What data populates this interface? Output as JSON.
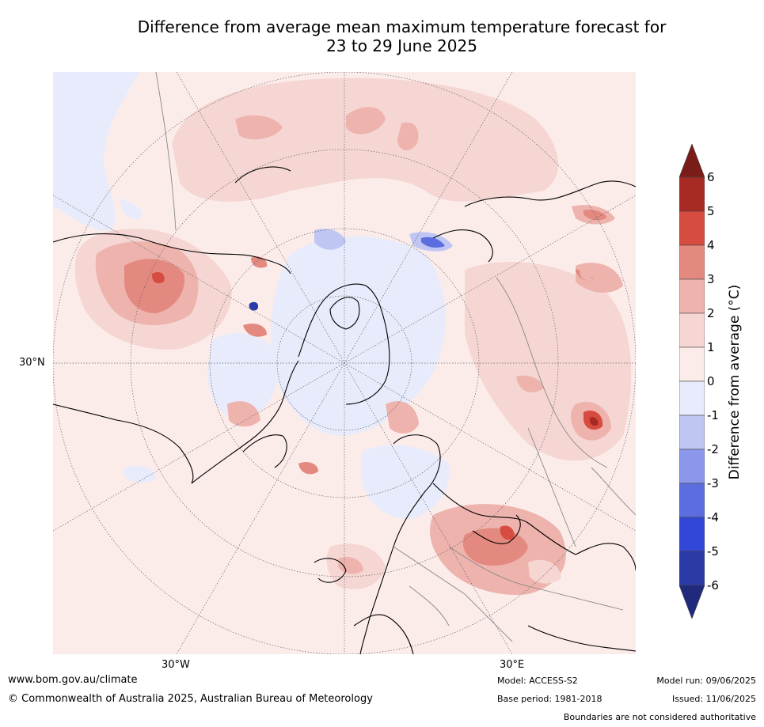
{
  "title": {
    "line1": "Difference from average mean maximum temperature forecast for",
    "line2": "23 to 29 June 2025"
  },
  "map": {
    "projection": "north-polar-stereographic",
    "lat_labels": [
      "30°N"
    ],
    "lon_labels": [
      "30°W",
      "30°E"
    ]
  },
  "colorbar": {
    "title": "Difference from average (°C)",
    "ticks": [
      "6",
      "5",
      "4",
      "3",
      "2",
      "1",
      "0",
      "-1",
      "-2",
      "-3",
      "-4",
      "-5",
      "-6"
    ],
    "bins": [
      {
        "range": ">6",
        "color": "#7a1c17"
      },
      {
        "range": "5 to 6",
        "color": "#a72a23"
      },
      {
        "range": "4 to 5",
        "color": "#d64c40"
      },
      {
        "range": "3 to 4",
        "color": "#e4897f"
      },
      {
        "range": "2 to 3",
        "color": "#eeb3ad"
      },
      {
        "range": "1 to 2",
        "color": "#f5d6d3"
      },
      {
        "range": "0 to 1",
        "color": "#fbecea"
      },
      {
        "range": "-1 to 0",
        "color": "#e8ebfb"
      },
      {
        "range": "-2 to -1",
        "color": "#bfc6f3"
      },
      {
        "range": "-3 to -2",
        "color": "#8b97ea"
      },
      {
        "range": "-4 to -3",
        "color": "#5b6ddf"
      },
      {
        "range": "-5 to -4",
        "color": "#3246d8"
      },
      {
        "range": "-6 to -5",
        "color": "#2a3aa6"
      },
      {
        "range": "<-6",
        "color": "#1f2a7d"
      }
    ]
  },
  "footer": {
    "website": "www.bom.gov.au/climate",
    "copyright": "© Commonwealth of Australia 2025, Australian Bureau of Meteorology",
    "model": "Model: ACCESS-S2",
    "base_period": "Base period: 1981-2018",
    "model_run": "Model run: 09/06/2025",
    "issued": "Issued: 11/06/2025",
    "disclaimer": "Boundaries are not considered authoritative"
  }
}
